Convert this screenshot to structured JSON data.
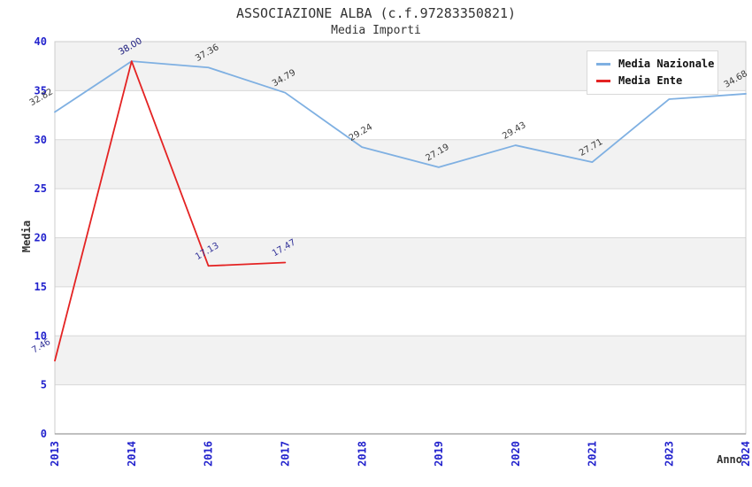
{
  "title": "ASSOCIAZIONE ALBA (c.f.97283350821)",
  "subtitle": "Media Importi",
  "axes": {
    "y_label": "Media",
    "x_label": "Anno",
    "y_ticks": [
      0,
      5,
      10,
      15,
      20,
      25,
      30,
      35,
      40
    ],
    "x_ticks": [
      "2013",
      "2014",
      "2016",
      "2017",
      "2018",
      "2019",
      "2020",
      "2021",
      "2023",
      "2024"
    ]
  },
  "legend": {
    "position": "top-right",
    "items": [
      {
        "label": "Media Nazionale",
        "color": "#7fb0e2"
      },
      {
        "label": "Media Ente",
        "color": "#e42323"
      }
    ]
  },
  "chart_data": {
    "type": "line",
    "title": "ASSOCIAZIONE ALBA (c.f.97283350821)",
    "subtitle": "Media Importi",
    "xlabel": "Anno",
    "ylabel": "Media",
    "ylim": [
      0,
      40
    ],
    "y_tick_step": 5,
    "grid": "horizontal-bands",
    "legend_position": "top-right",
    "label_format": "2-decimals",
    "categories": [
      "2013",
      "2014",
      "2016",
      "2017",
      "2018",
      "2019",
      "2020",
      "2021",
      "2023",
      "2024"
    ],
    "series": [
      {
        "name": "Media Nazionale",
        "color": "#7fb0e2",
        "label_color": "#3c3c3c",
        "values": [
          32.82,
          38.0,
          37.36,
          34.79,
          29.24,
          27.19,
          29.43,
          27.71,
          34.13,
          34.68
        ],
        "note": "2023 label occluded by legend; value estimated from gridlines"
      },
      {
        "name": "Media Ente",
        "color": "#e42323",
        "label_color": "#333399",
        "values": [
          7.46,
          38.0,
          17.13,
          17.47,
          null,
          null,
          null,
          null,
          null,
          null
        ]
      }
    ],
    "colors": {
      "band": "#f2f2f2",
      "band_alt": "#ffffff",
      "grid": "#d8d8d8",
      "border": "#cccccc",
      "axis_line": "#9a9a9a",
      "tick_label": "#2323cd",
      "title_text": "#333333"
    }
  }
}
